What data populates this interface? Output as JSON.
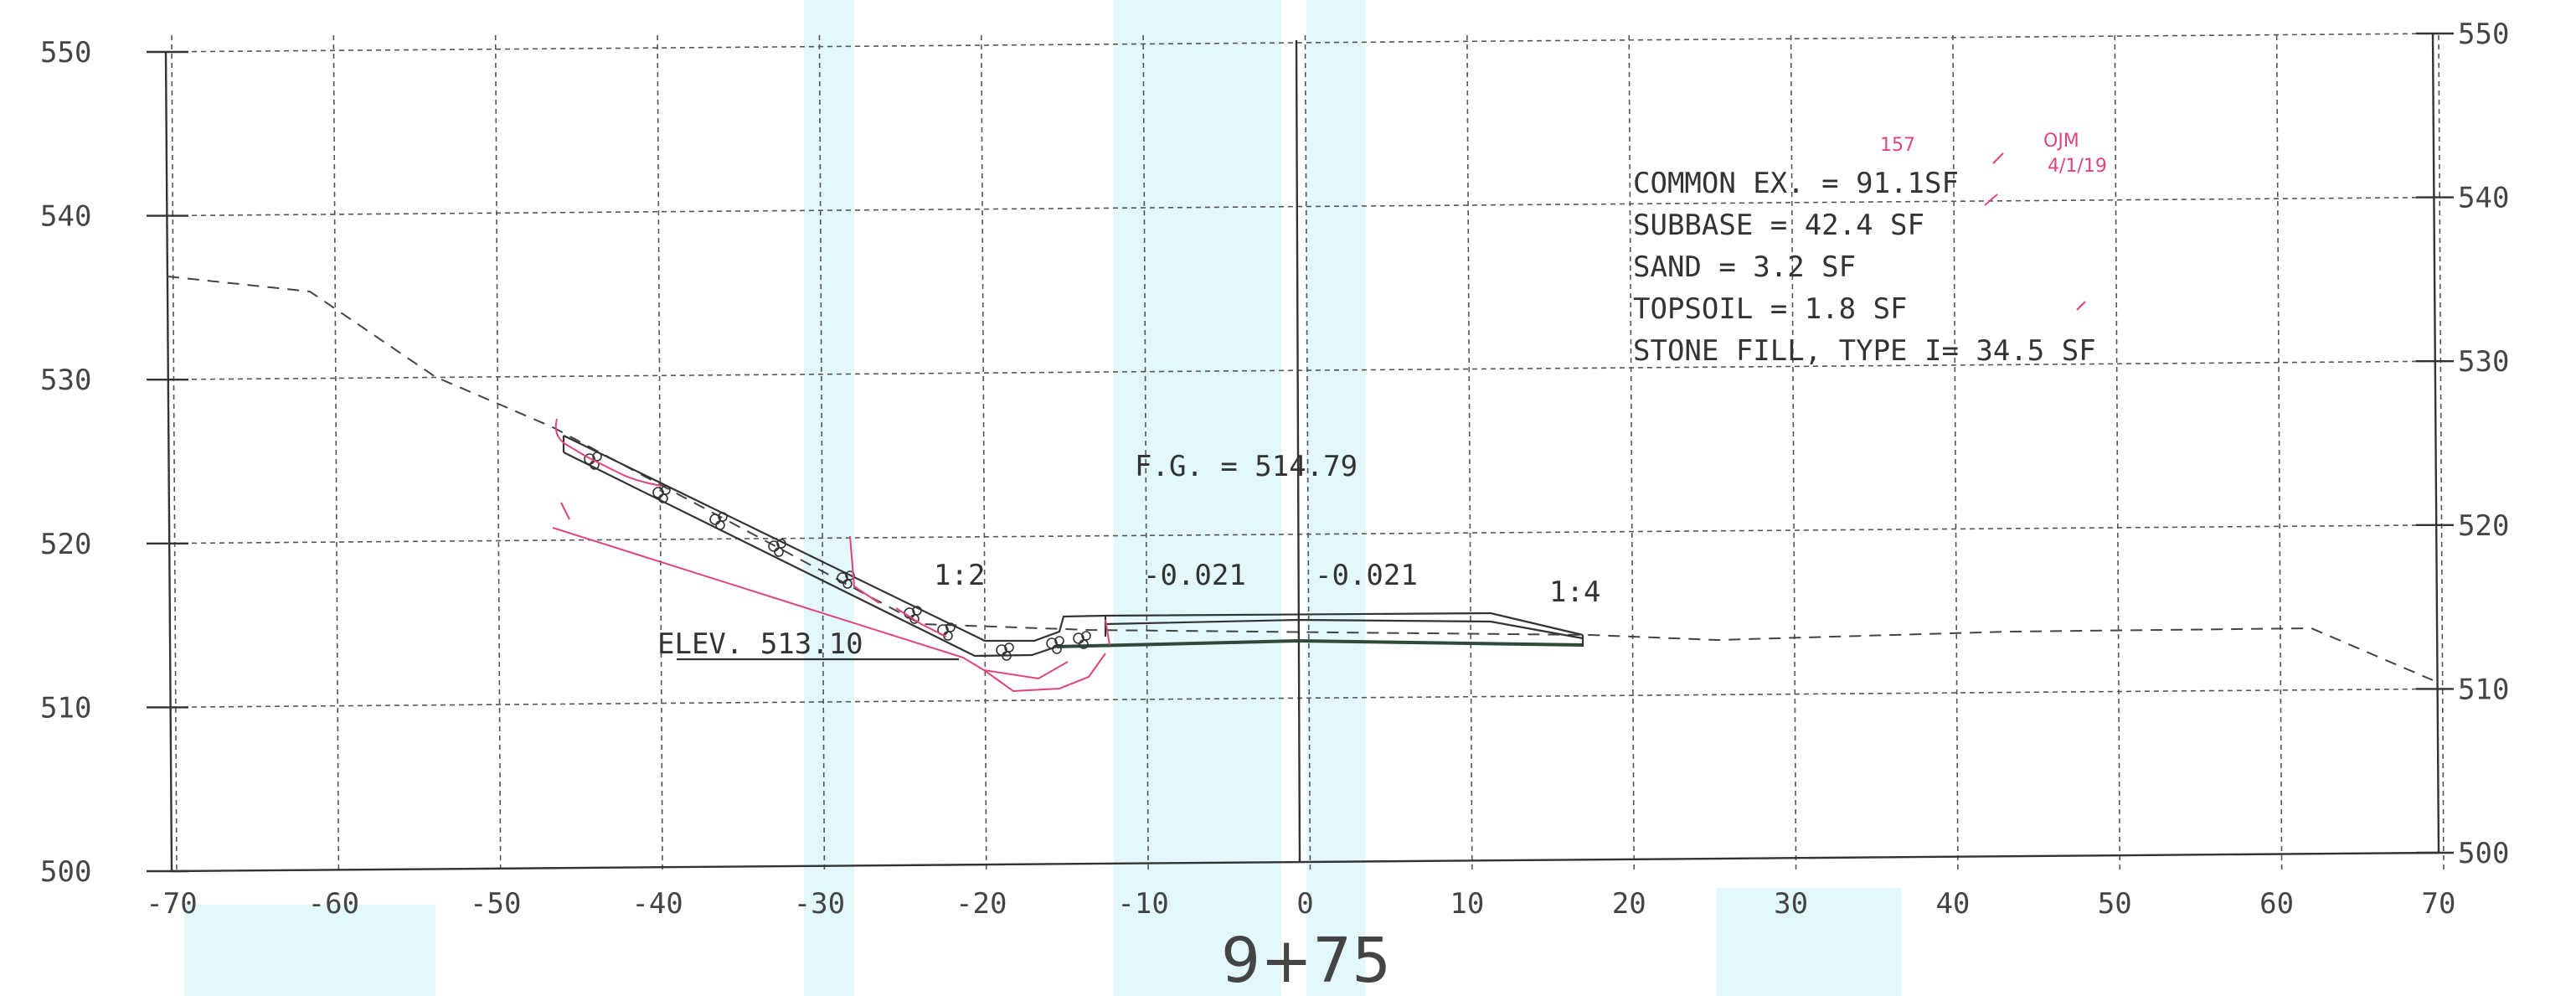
{
  "station_label": "9+75",
  "x_ticks": [
    "-70",
    "-60",
    "-50",
    "-40",
    "-30",
    "-20",
    "-10",
    "0",
    "10",
    "20",
    "30",
    "40",
    "50",
    "60",
    "70"
  ],
  "y_ticks_left": [
    "550",
    "540",
    "530",
    "520",
    "510",
    "500"
  ],
  "y_ticks_right": [
    "550",
    "540",
    "530",
    "520",
    "510",
    "500"
  ],
  "quantities": [
    "COMMON EX. = 91.1SF",
    "SUBBASE = 42.4 SF",
    "SAND = 3.2 SF",
    "TOPSOIL = 1.8 SF",
    "STONE FILL, TYPE I= 34.5 SF"
  ],
  "finish_grade": "F.G. = 514.79",
  "slope_left": "1:2",
  "slope_right": "1:4",
  "cross_slope_left": "-0.021",
  "cross_slope_right": "-0.021",
  "elevation_label": "ELEV. 513.10",
  "markup_notes": [
    "157",
    "OJM",
    "4/1/19"
  ],
  "colors": {
    "markup": "#e0457a",
    "scan_tint": "#bff0f4",
    "line": "#333333"
  }
}
